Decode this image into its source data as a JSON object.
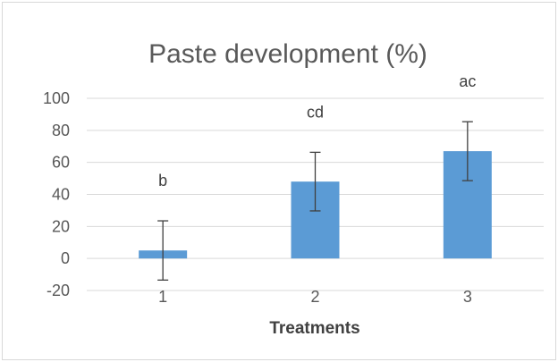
{
  "chart_data": {
    "type": "bar",
    "title": "Paste development (%)",
    "xlabel": "Treatments",
    "ylabel": "",
    "categories": [
      "1",
      "2",
      "3"
    ],
    "values": [
      5,
      48,
      67
    ],
    "error": [
      18.5,
      18.3,
      18.4
    ],
    "data_labels": [
      "b",
      "cd",
      "ac"
    ],
    "ylim": [
      -20,
      100
    ],
    "yticks": [
      -20,
      0,
      20,
      40,
      60,
      80,
      100
    ],
    "ytick_labels": [
      "-20",
      "0",
      "20",
      "40",
      "60",
      "80",
      "100"
    ],
    "grid": true,
    "legend": "none",
    "colors": {
      "bar": "#5b9bd5",
      "grid": "#d9d9d9",
      "error_bar": "#404040",
      "text": "#595959"
    }
  }
}
